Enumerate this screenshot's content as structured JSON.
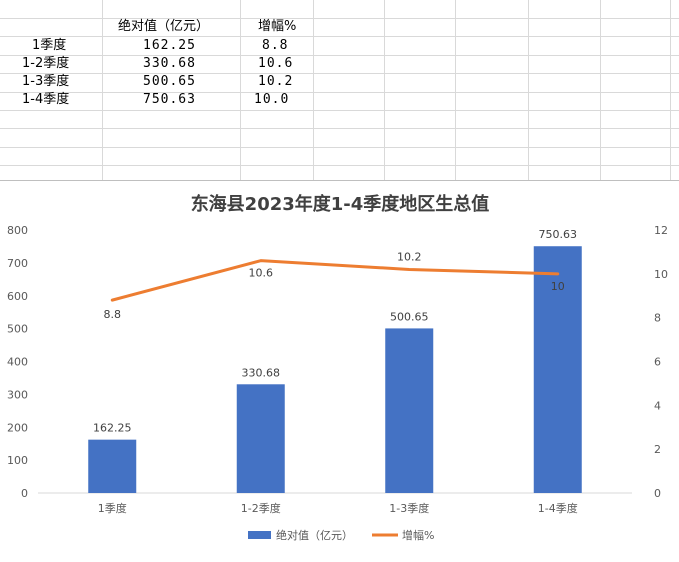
{
  "sheet": {
    "headers": [
      "",
      "绝对值（亿元）",
      "增幅%"
    ],
    "rows": [
      {
        "label": "1季度",
        "value": "162.25",
        "growth": "8.8"
      },
      {
        "label": "1-2季度",
        "value": "330.68",
        "growth": "10.6"
      },
      {
        "label": "1-3季度",
        "value": "500.65",
        "growth": "10.2"
      },
      {
        "label": "1-4季度",
        "value": "750.63",
        "growth": "10.0"
      }
    ]
  },
  "chart_data": {
    "type": "bar",
    "title": "东海县2023年度1-4季度地区生总值",
    "categories": [
      "1季度",
      "1-2季度",
      "1-3季度",
      "1-4季度"
    ],
    "series": [
      {
        "name": "绝对值（亿元）",
        "type": "bar",
        "axis": "left",
        "values": [
          162.25,
          330.68,
          500.65,
          750.63
        ],
        "labels": [
          "162.25",
          "330.68",
          "500.65",
          "750.63"
        ],
        "color": "#4472c4"
      },
      {
        "name": "增幅%",
        "type": "line",
        "axis": "right",
        "values": [
          8.8,
          10.6,
          10.2,
          10.0
        ],
        "labels": [
          "8.8",
          "10.6",
          "10.2",
          "10"
        ],
        "color": "#ed7d31"
      }
    ],
    "ylim_left": [
      0,
      800
    ],
    "yticks_left": [
      "0",
      "100",
      "200",
      "300",
      "400",
      "500",
      "600",
      "700",
      "800"
    ],
    "ylim_right": [
      0,
      12
    ],
    "yticks_right": [
      "0",
      "2",
      "4",
      "6",
      "8",
      "10",
      "12"
    ],
    "grid": false,
    "legend_position": "bottom"
  }
}
